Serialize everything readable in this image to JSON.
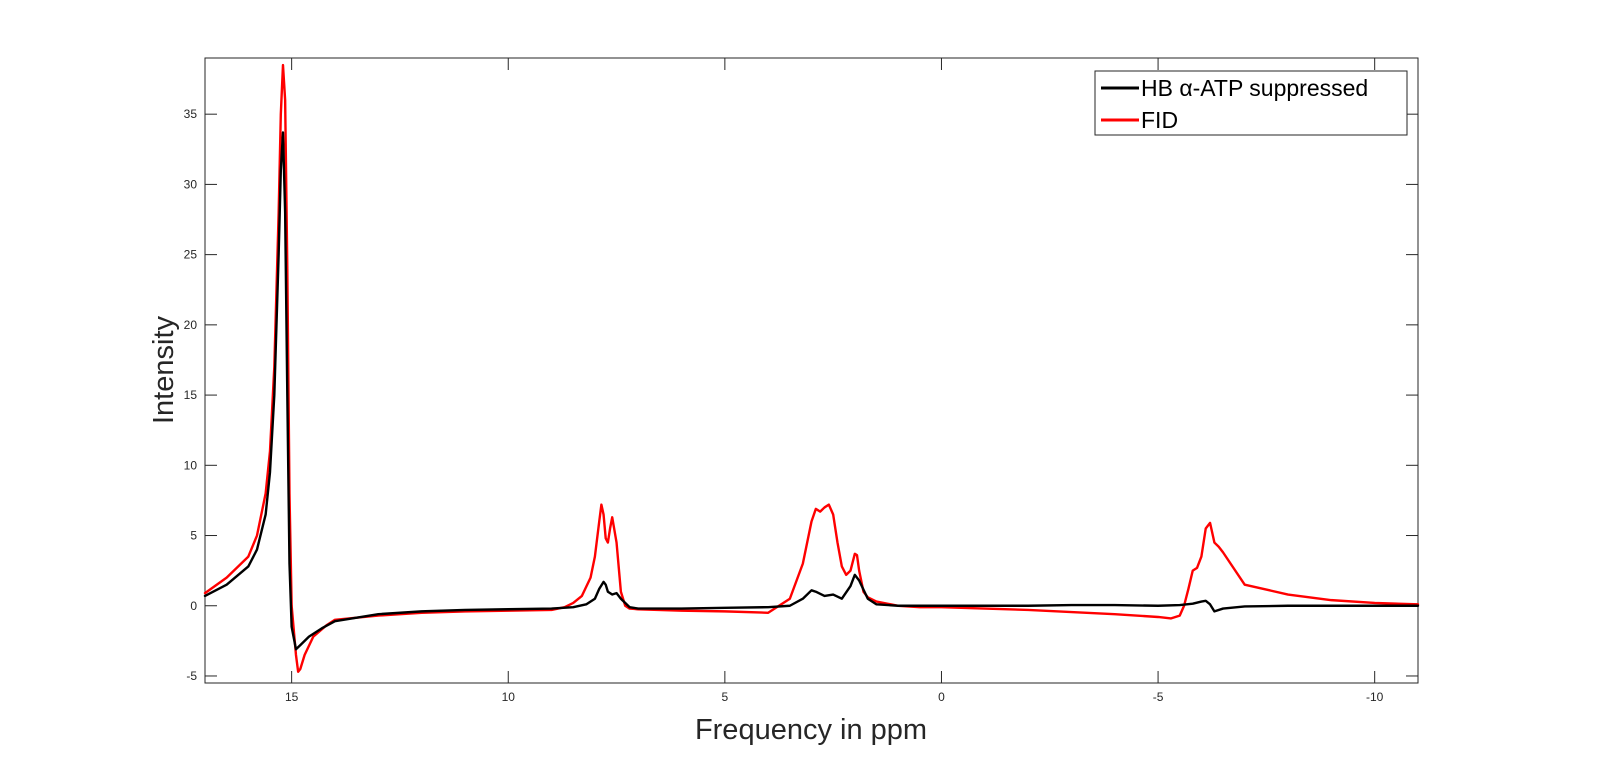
{
  "chart_data": {
    "type": "line",
    "title": "",
    "xlabel": "Frequency in ppm",
    "ylabel": "Intensity",
    "xlim": [
      17,
      -11
    ],
    "ylim": [
      -5.5,
      39
    ],
    "x_reversed": true,
    "x_ticks": [
      15,
      10,
      5,
      0,
      -5,
      -10
    ],
    "x_tick_labels": [
      "15",
      "10",
      "5",
      "0",
      "-5",
      "-10"
    ],
    "y_ticks": [
      -5,
      0,
      5,
      10,
      15,
      20,
      25,
      30,
      35
    ],
    "y_tick_labels": [
      "-5",
      "0",
      "5",
      "10",
      "15",
      "20",
      "25",
      "30",
      "35"
    ],
    "grid": false,
    "legend_position": "top-right",
    "legend": [
      {
        "label": "HB α-ATP suppressed",
        "color": "#000000"
      },
      {
        "label": "FID",
        "color": "#ff0000"
      }
    ],
    "series": [
      {
        "name": "HB α-ATP suppressed",
        "color": "#000000",
        "x": [
          17.0,
          16.5,
          16.0,
          15.8,
          15.6,
          15.5,
          15.4,
          15.3,
          15.25,
          15.2,
          15.15,
          15.1,
          15.05,
          15.0,
          14.9,
          14.8,
          14.6,
          14.3,
          14.0,
          13.0,
          12.0,
          11.0,
          10.0,
          9.0,
          8.5,
          8.2,
          8.0,
          7.9,
          7.8,
          7.75,
          7.7,
          7.6,
          7.5,
          7.4,
          7.2,
          7.0,
          6.0,
          5.0,
          4.0,
          3.5,
          3.2,
          3.0,
          2.9,
          2.7,
          2.5,
          2.3,
          2.1,
          2.0,
          1.9,
          1.7,
          1.5,
          1.0,
          0.0,
          -1.0,
          -2.0,
          -3.0,
          -4.0,
          -5.0,
          -5.5,
          -5.8,
          -6.0,
          -6.1,
          -6.2,
          -6.3,
          -6.5,
          -7.0,
          -8.0,
          -9.0,
          -10.0,
          -11.0
        ],
        "y": [
          0.7,
          1.5,
          2.8,
          4.0,
          6.5,
          9.5,
          15.0,
          25.0,
          31.0,
          33.7,
          28.0,
          15.0,
          3.0,
          -1.5,
          -3.1,
          -2.8,
          -2.2,
          -1.6,
          -1.1,
          -0.6,
          -0.4,
          -0.3,
          -0.25,
          -0.2,
          -0.1,
          0.1,
          0.5,
          1.2,
          1.7,
          1.5,
          1.0,
          0.8,
          0.9,
          0.5,
          -0.1,
          -0.2,
          -0.2,
          -0.15,
          -0.1,
          0.0,
          0.5,
          1.1,
          1.0,
          0.7,
          0.8,
          0.5,
          1.4,
          2.2,
          1.8,
          0.5,
          0.1,
          0.0,
          0.0,
          0.0,
          0.0,
          0.05,
          0.05,
          0.0,
          0.05,
          0.15,
          0.3,
          0.35,
          0.1,
          -0.4,
          -0.2,
          -0.05,
          0.0,
          0.0,
          0.0,
          0.0
        ]
      },
      {
        "name": "FID",
        "color": "#ff0000",
        "x": [
          17.0,
          16.5,
          16.0,
          15.8,
          15.6,
          15.5,
          15.4,
          15.3,
          15.25,
          15.2,
          15.15,
          15.1,
          15.05,
          15.0,
          14.9,
          14.85,
          14.8,
          14.7,
          14.5,
          14.2,
          14.0,
          13.0,
          12.0,
          11.0,
          10.0,
          9.0,
          8.7,
          8.5,
          8.3,
          8.1,
          8.0,
          7.9,
          7.85,
          7.8,
          7.75,
          7.7,
          7.65,
          7.6,
          7.5,
          7.4,
          7.3,
          7.2,
          7.0,
          6.0,
          5.0,
          4.0,
          3.5,
          3.2,
          3.0,
          2.9,
          2.8,
          2.7,
          2.6,
          2.5,
          2.4,
          2.3,
          2.2,
          2.1,
          2.0,
          1.95,
          1.9,
          1.8,
          1.7,
          1.5,
          1.0,
          0.5,
          0.0,
          -1.0,
          -2.0,
          -3.0,
          -4.0,
          -5.0,
          -5.3,
          -5.5,
          -5.6,
          -5.7,
          -5.8,
          -5.9,
          -6.0,
          -6.1,
          -6.2,
          -6.3,
          -6.4,
          -6.5,
          -7.0,
          -8.0,
          -9.0,
          -10.0,
          -11.0
        ],
        "y": [
          0.9,
          2.0,
          3.5,
          5.0,
          8.0,
          11.0,
          17.0,
          28.0,
          35.0,
          38.5,
          36.0,
          24.0,
          8.0,
          0.0,
          -3.5,
          -4.7,
          -4.5,
          -3.5,
          -2.2,
          -1.4,
          -1.0,
          -0.7,
          -0.5,
          -0.4,
          -0.35,
          -0.3,
          -0.1,
          0.2,
          0.7,
          2.0,
          3.5,
          6.0,
          7.2,
          6.5,
          4.8,
          4.5,
          5.5,
          6.3,
          4.5,
          1.0,
          0.0,
          -0.2,
          -0.25,
          -0.35,
          -0.4,
          -0.5,
          0.5,
          3.0,
          6.0,
          6.9,
          6.7,
          7.0,
          7.2,
          6.5,
          4.5,
          2.8,
          2.2,
          2.5,
          3.7,
          3.6,
          2.5,
          1.0,
          0.6,
          0.3,
          0.0,
          -0.1,
          -0.1,
          -0.2,
          -0.3,
          -0.45,
          -0.6,
          -0.8,
          -0.9,
          -0.7,
          0.0,
          1.2,
          2.5,
          2.7,
          3.5,
          5.5,
          5.9,
          4.5,
          4.2,
          3.8,
          1.5,
          0.8,
          0.4,
          0.2,
          0.1
        ]
      }
    ]
  }
}
